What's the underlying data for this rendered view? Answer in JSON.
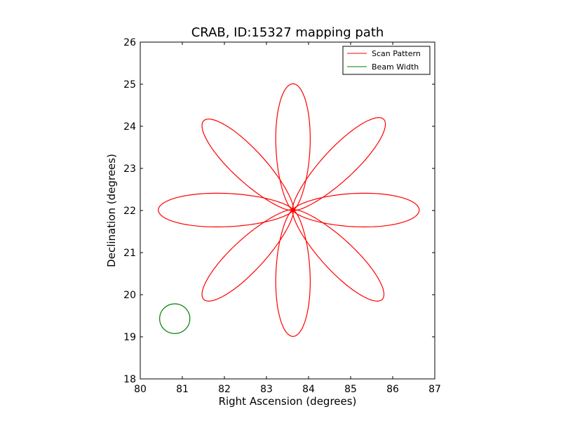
{
  "chart_data": {
    "type": "line",
    "title": "CRAB, ID:15327 mapping path",
    "xlabel": "Right Ascension (degrees)",
    "ylabel": "Declination (degrees)",
    "xlim": [
      80,
      87
    ],
    "ylim": [
      18,
      26
    ],
    "xticks": [
      "80",
      "81",
      "82",
      "83",
      "84",
      "85",
      "86",
      "87"
    ],
    "yticks": [
      "18",
      "19",
      "20",
      "21",
      "22",
      "23",
      "24",
      "25",
      "26"
    ],
    "grid": false,
    "legend_position": "top-right",
    "center": [
      83.63,
      22.01
    ],
    "series": [
      {
        "name": "Scan Pattern",
        "color": "#ff0000",
        "petals": [
          {
            "angle": 90,
            "length": 3.0,
            "width": 0.45
          },
          {
            "angle": 45,
            "length": 3.05,
            "width": 0.42
          },
          {
            "angle": 0,
            "length": 3.0,
            "width": 0.44
          },
          {
            "angle": -45,
            "length": 3.0,
            "width": 0.42
          },
          {
            "angle": -90,
            "length": 3.0,
            "width": 0.45
          },
          {
            "angle": -135,
            "length": 3.0,
            "width": 0.42
          },
          {
            "angle": 180,
            "length": 3.2,
            "width": 0.44
          },
          {
            "angle": 135,
            "length": 3.0,
            "width": 0.42
          }
        ]
      },
      {
        "name": "Beam Width",
        "color": "#008000",
        "circle": {
          "cx": 80.82,
          "cy": 19.43,
          "r": 0.36
        }
      }
    ]
  }
}
